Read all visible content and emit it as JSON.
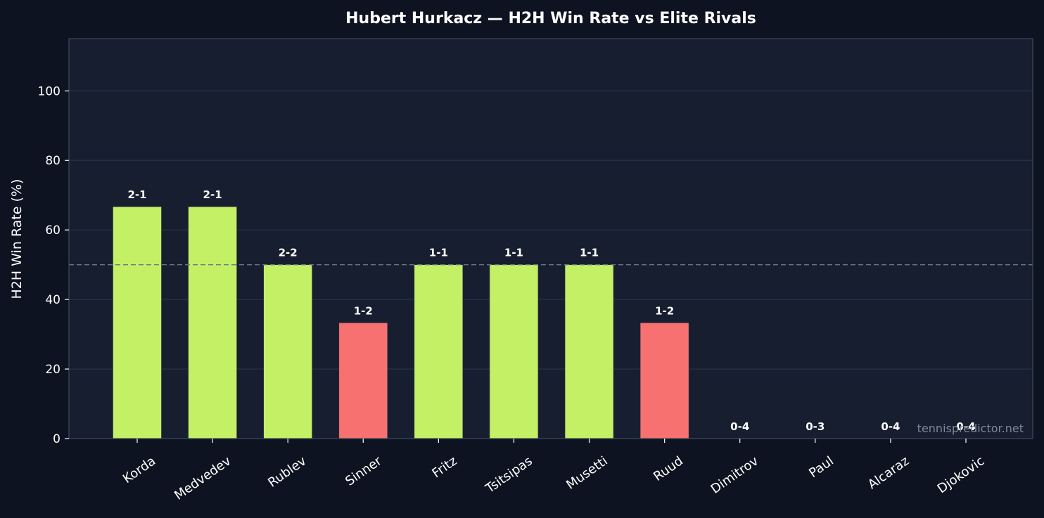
{
  "page": {
    "background": "#0d1320",
    "plot_background": "#171e30",
    "watermark": "tennispredictor.net"
  },
  "colors": {
    "win_bar": "#c4f066",
    "loss_bar": "#f87171",
    "grid": "#243044",
    "spine": "#3a4658",
    "reference_line": "#6b7888",
    "text": "#ffffff",
    "watermark_text": "#7f8896"
  },
  "chart_data": {
    "type": "bar",
    "title": "Hubert Hurkacz — H2H Win Rate vs Elite Rivals",
    "xlabel": "",
    "ylabel": "H2H Win Rate (%)",
    "ylim": [
      0,
      115
    ],
    "yticks": [
      0,
      20,
      40,
      60,
      80,
      100
    ],
    "grid": true,
    "reference_line": 50,
    "categories": [
      "Korda",
      "Medvedev",
      "Rublev",
      "Sinner",
      "Fritz",
      "Tsitsipas",
      "Musetti",
      "Ruud",
      "Dimitrov",
      "Paul",
      "Alcaraz",
      "Djokovic"
    ],
    "values": [
      66.7,
      66.7,
      50,
      33.3,
      50,
      50,
      50,
      33.3,
      0,
      0,
      0,
      0
    ],
    "labels": [
      "2-1",
      "2-1",
      "2-2",
      "1-2",
      "1-1",
      "1-1",
      "1-1",
      "1-2",
      "0-4",
      "0-3",
      "0-4",
      "0-4"
    ],
    "bar_colors": [
      "win",
      "win",
      "win",
      "loss",
      "win",
      "win",
      "win",
      "loss",
      "loss",
      "loss",
      "loss",
      "loss"
    ]
  }
}
